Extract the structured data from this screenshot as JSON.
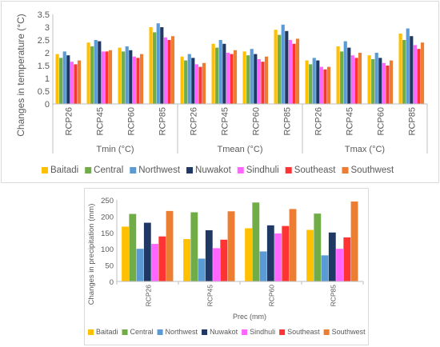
{
  "colors": {
    "Baitadi": "#ffc000",
    "Central": "#70ad47",
    "Northwest": "#5b9bd5",
    "Nuwakot": "#1f3864",
    "Sindhuli": "#ff66ff",
    "Southeast": "#ff3333",
    "Southwest": "#ed7d31"
  },
  "chart_data": [
    {
      "type": "bar",
      "ylabel": "Changes in temperature (°C)",
      "ylim": [
        0,
        3.5
      ],
      "yticks": [
        "0",
        "0.5",
        "1",
        "1.5",
        "2",
        "2.5",
        "3",
        "3.5"
      ],
      "grid": false,
      "legend_position": "bottom",
      "categories": [
        "RCP26",
        "RCP45",
        "RCP60",
        "RCP85",
        "RCP26",
        "RCP45",
        "RCP60",
        "RCP85",
        "RCP26",
        "RCP45",
        "RCP60",
        "RCP85"
      ],
      "groups": [
        "Tmin (°C)",
        "Tmean (°C)",
        "Tmax (°C)"
      ],
      "series": [
        {
          "name": "Baitadi",
          "values": [
            1.95,
            2.4,
            2.2,
            3.0,
            1.85,
            2.35,
            2.05,
            2.9,
            1.7,
            2.25,
            1.9,
            2.75
          ]
        },
        {
          "name": "Central",
          "values": [
            1.8,
            2.25,
            2.05,
            2.8,
            1.7,
            2.2,
            1.9,
            2.7,
            1.55,
            2.05,
            1.75,
            2.5
          ]
        },
        {
          "name": "Northwest",
          "values": [
            2.05,
            2.5,
            2.25,
            3.15,
            1.95,
            2.5,
            2.15,
            3.1,
            1.8,
            2.45,
            2.0,
            2.95
          ]
        },
        {
          "name": "Nuwakot",
          "values": [
            1.9,
            2.45,
            2.1,
            3.0,
            1.8,
            2.35,
            1.95,
            2.85,
            1.7,
            2.2,
            1.8,
            2.65
          ]
        },
        {
          "name": "Sindhuli",
          "values": [
            1.65,
            2.05,
            1.85,
            2.6,
            1.55,
            2.0,
            1.75,
            2.5,
            1.45,
            1.9,
            1.6,
            2.3
          ]
        },
        {
          "name": "Southeast",
          "values": [
            1.55,
            2.05,
            1.8,
            2.5,
            1.45,
            1.95,
            1.65,
            2.35,
            1.35,
            1.8,
            1.5,
            2.15
          ]
        },
        {
          "name": "Southwest",
          "values": [
            1.7,
            2.1,
            1.95,
            2.65,
            1.6,
            2.1,
            1.85,
            2.55,
            1.45,
            2.0,
            1.7,
            2.4
          ]
        }
      ]
    },
    {
      "type": "bar",
      "ylabel": "Changes in precipitation (mm)",
      "xlabel": "Prec (mm)",
      "ylim": [
        0,
        250
      ],
      "yticks": [
        "0",
        "50",
        "100",
        "150",
        "200",
        "250"
      ],
      "grid": false,
      "legend_position": "bottom",
      "categories": [
        "RCP26",
        "RCP45",
        "RCP60",
        "RCP85"
      ],
      "series": [
        {
          "name": "Baitadi",
          "values": [
            168,
            130,
            163,
            158
          ]
        },
        {
          "name": "Central",
          "values": [
            207,
            212,
            242,
            208
          ]
        },
        {
          "name": "Northwest",
          "values": [
            100,
            70,
            92,
            80
          ]
        },
        {
          "name": "Nuwakot",
          "values": [
            180,
            157,
            172,
            150
          ]
        },
        {
          "name": "Sindhuli",
          "values": [
            115,
            102,
            147,
            100
          ]
        },
        {
          "name": "Southeast",
          "values": [
            138,
            128,
            170,
            135
          ]
        },
        {
          "name": "Southwest",
          "values": [
            216,
            215,
            222,
            245
          ]
        }
      ]
    }
  ]
}
